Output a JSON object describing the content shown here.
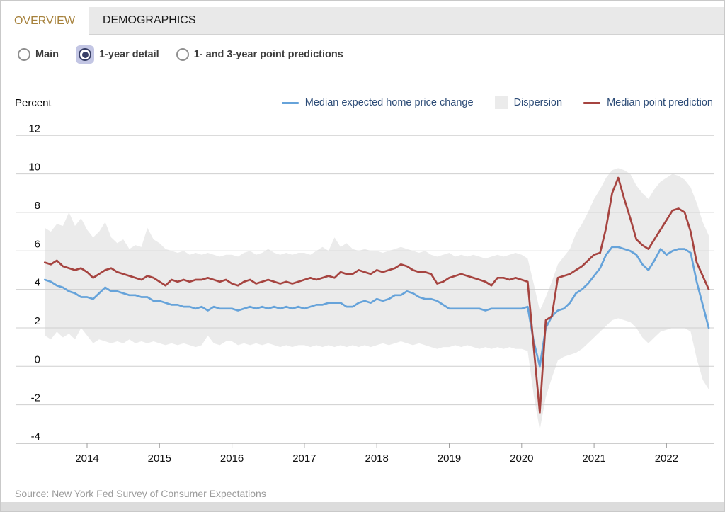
{
  "tabs": {
    "overview": "OVERVIEW",
    "demographics": "DEMOGRAPHICS"
  },
  "controls": {
    "options": [
      {
        "label": "Main",
        "selected": false
      },
      {
        "label": "1-year detail",
        "selected": true
      },
      {
        "label": "1- and 3-year point predictions",
        "selected": false
      }
    ]
  },
  "axis_unit": "Percent",
  "legend": {
    "series_blue": "Median expected home price change",
    "dispersion": "Dispersion",
    "series_red": "Median point prediction"
  },
  "source": "Source: New York Fed Survey of Consumer Expectations",
  "colors": {
    "blue_line": "#66a3da",
    "red_line": "#a64440",
    "band": "#ebebeb",
    "grid": "#cfcfcf",
    "axis": "#9e9e9e",
    "tab_active_text": "#a6813b",
    "radio_accent": "#383f66",
    "radio_highlight": "#c3c6e4",
    "legend_text": "#2e4d78"
  },
  "chart_data": {
    "type": "line",
    "title": "",
    "ylabel": "Percent",
    "xlabel": "",
    "x_start": "2013-06",
    "frequency": "monthly",
    "x_tick_labels": [
      "2014",
      "2015",
      "2016",
      "2017",
      "2018",
      "2019",
      "2020",
      "2021",
      "2022"
    ],
    "y_tick_labels": [
      "12",
      "10",
      "8",
      "6",
      "4",
      "2",
      "0",
      "-2",
      "-4"
    ],
    "ylim": [
      -4,
      12
    ],
    "grid": true,
    "legend_position": "top",
    "series": [
      {
        "name": "Median expected home price change",
        "color": "#66a3da",
        "values": [
          4.5,
          4.4,
          4.2,
          4.1,
          3.9,
          3.8,
          3.6,
          3.6,
          3.5,
          3.8,
          4.1,
          3.9,
          3.9,
          3.8,
          3.7,
          3.7,
          3.6,
          3.6,
          3.4,
          3.4,
          3.3,
          3.2,
          3.2,
          3.1,
          3.1,
          3.0,
          3.1,
          2.9,
          3.1,
          3.0,
          3.0,
          3.0,
          2.9,
          3.0,
          3.1,
          3.0,
          3.1,
          3.0,
          3.1,
          3.0,
          3.1,
          3.0,
          3.1,
          3.0,
          3.1,
          3.2,
          3.2,
          3.3,
          3.3,
          3.3,
          3.1,
          3.1,
          3.3,
          3.4,
          3.3,
          3.5,
          3.4,
          3.5,
          3.7,
          3.7,
          3.9,
          3.8,
          3.6,
          3.5,
          3.5,
          3.4,
          3.2,
          3.0,
          3.0,
          3.0,
          3.0,
          3.0,
          3.0,
          2.9,
          3.0,
          3.0,
          3.0,
          3.0,
          3.0,
          3.0,
          3.1,
          1.3,
          0.0,
          2.0,
          2.6,
          2.9,
          3.0,
          3.3,
          3.8,
          4.0,
          4.3,
          4.7,
          5.1,
          5.8,
          6.2,
          6.2,
          6.1,
          6.0,
          5.8,
          5.3,
          5.0,
          5.5,
          6.1,
          5.8,
          6.0,
          6.1,
          6.1,
          5.9,
          4.4,
          3.2,
          2.0
        ]
      },
      {
        "name": "Median point prediction",
        "color": "#a64440",
        "values": [
          5.4,
          5.3,
          5.5,
          5.2,
          5.1,
          5.0,
          5.1,
          4.9,
          4.6,
          4.8,
          5.0,
          5.1,
          4.9,
          4.8,
          4.7,
          4.6,
          4.5,
          4.7,
          4.6,
          4.4,
          4.2,
          4.5,
          4.4,
          4.5,
          4.4,
          4.5,
          4.5,
          4.6,
          4.5,
          4.4,
          4.5,
          4.3,
          4.2,
          4.4,
          4.5,
          4.3,
          4.4,
          4.5,
          4.4,
          4.3,
          4.4,
          4.3,
          4.4,
          4.5,
          4.6,
          4.5,
          4.6,
          4.7,
          4.6,
          4.9,
          4.8,
          4.8,
          5.0,
          4.9,
          4.8,
          5.0,
          4.9,
          5.0,
          5.1,
          5.3,
          5.2,
          5.0,
          4.9,
          4.9,
          4.8,
          4.3,
          4.4,
          4.6,
          4.7,
          4.8,
          4.7,
          4.6,
          4.5,
          4.4,
          4.2,
          4.6,
          4.6,
          4.5,
          4.6,
          4.5,
          4.4,
          1.0,
          -2.4,
          2.4,
          2.6,
          4.6,
          4.7,
          4.8,
          5.0,
          5.2,
          5.5,
          5.8,
          5.9,
          7.2,
          9.0,
          9.8,
          8.7,
          7.7,
          6.6,
          6.3,
          6.1,
          6.6,
          7.1,
          7.6,
          8.1,
          8.2,
          8.0,
          7.0,
          5.4,
          4.7,
          4.0
        ]
      }
    ],
    "band": {
      "name": "Dispersion",
      "color": "#ebebeb",
      "upper": [
        7.2,
        7.0,
        7.4,
        7.3,
        8.0,
        7.3,
        7.7,
        7.1,
        6.7,
        7.0,
        7.5,
        6.7,
        6.4,
        6.6,
        6.1,
        6.3,
        6.2,
        7.2,
        6.6,
        6.4,
        6.1,
        6.0,
        5.9,
        6.0,
        5.8,
        5.9,
        5.8,
        5.9,
        5.8,
        5.7,
        5.8,
        5.8,
        5.7,
        5.9,
        6.0,
        5.8,
        5.9,
        6.1,
        5.9,
        5.8,
        5.9,
        5.8,
        5.9,
        5.9,
        5.8,
        6.0,
        6.2,
        6.0,
        6.7,
        6.2,
        6.4,
        6.1,
        6.0,
        6.1,
        6.0,
        6.0,
        5.9,
        6.0,
        6.1,
        6.2,
        6.1,
        6.0,
        5.9,
        6.0,
        5.8,
        5.7,
        5.8,
        5.9,
        5.7,
        5.8,
        5.7,
        5.8,
        5.7,
        5.6,
        5.7,
        5.8,
        5.7,
        5.8,
        5.9,
        5.8,
        5.6,
        4.3,
        2.9,
        3.6,
        4.4,
        5.3,
        5.7,
        6.1,
        6.9,
        7.4,
        8.0,
        8.7,
        9.2,
        9.8,
        10.2,
        10.3,
        10.2,
        10.0,
        9.4,
        9.0,
        8.7,
        9.2,
        9.6,
        9.8,
        10.0,
        9.9,
        9.7,
        9.3,
        8.5,
        7.5,
        6.8
      ],
      "lower": [
        1.6,
        1.4,
        1.8,
        1.5,
        1.7,
        1.4,
        2.0,
        1.6,
        1.2,
        1.4,
        1.3,
        1.2,
        1.3,
        1.2,
        1.4,
        1.2,
        1.3,
        1.2,
        1.3,
        1.2,
        1.1,
        1.2,
        1.1,
        1.2,
        1.1,
        1.0,
        1.1,
        1.6,
        1.2,
        1.1,
        1.3,
        1.3,
        1.1,
        1.2,
        1.1,
        1.2,
        1.1,
        1.2,
        1.1,
        1.0,
        1.1,
        1.0,
        1.1,
        1.1,
        1.0,
        1.1,
        1.0,
        1.1,
        1.0,
        1.1,
        1.0,
        1.1,
        1.0,
        1.1,
        1.0,
        1.1,
        1.2,
        1.1,
        1.2,
        1.3,
        1.2,
        1.1,
        1.2,
        1.1,
        1.0,
        0.9,
        1.0,
        1.0,
        1.1,
        1.0,
        1.1,
        1.0,
        0.9,
        1.0,
        0.9,
        1.0,
        0.9,
        1.0,
        0.9,
        0.9,
        0.8,
        -1.5,
        -3.3,
        -1.6,
        -0.6,
        0.3,
        0.5,
        0.6,
        0.7,
        0.9,
        1.2,
        1.5,
        1.8,
        2.1,
        2.4,
        2.5,
        2.4,
        2.3,
        2.0,
        1.5,
        1.2,
        1.5,
        1.8,
        1.9,
        2.0,
        2.0,
        2.0,
        1.8,
        0.4,
        -0.7,
        -1.2
      ]
    }
  }
}
